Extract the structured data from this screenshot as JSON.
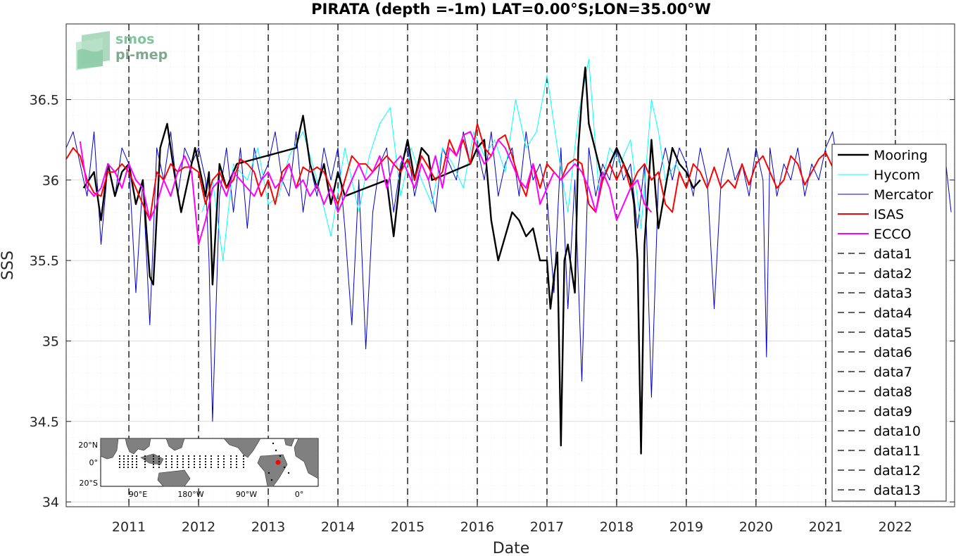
{
  "chart_data": {
    "type": "line",
    "title": "PIRATA (depth =-1m) LAT=0.00°S;LON=35.00°W",
    "xlabel": "Date",
    "ylabel": "SSS",
    "xlim": [
      2010.1,
      2022.85
    ],
    "ylim": [
      33.97,
      36.97
    ],
    "xticks": [
      "2011",
      "2012",
      "2013",
      "2014",
      "2015",
      "2016",
      "2017",
      "2018",
      "2019",
      "2020",
      "2021",
      "2022"
    ],
    "yticks": [
      "34",
      "34.5",
      "35",
      "35.5",
      "36",
      "36.5"
    ],
    "grid": true,
    "legend_position": "right",
    "logo": [
      "smos",
      "pi-mep"
    ],
    "series": [
      {
        "name": "Mooring",
        "color": "#000000",
        "x": [
          2010.35,
          2010.5,
          2010.6,
          2010.7,
          2010.8,
          2010.9,
          2011.0,
          2011.1,
          2011.2,
          2011.25,
          2011.3,
          2011.35,
          2011.45,
          2011.55,
          2011.65,
          2011.75,
          2011.85,
          2011.95,
          2012.1,
          2012.15,
          2012.2,
          2012.3,
          2012.4,
          2012.55,
          2013.4,
          2013.5,
          2013.6,
          2013.7,
          2013.8,
          2013.9,
          2014.0,
          2014.1,
          2014.7,
          2014.8,
          2014.9,
          2015.0,
          2015.1,
          2015.2,
          2015.3,
          2015.35,
          2015.9,
          2016.0,
          2016.1,
          2016.2,
          2016.3,
          2016.4,
          2016.5,
          2016.6,
          2016.7,
          2016.8,
          2016.9,
          2017.0,
          2017.05,
          2017.1,
          2017.15,
          2017.2,
          2017.25,
          2017.3,
          2017.35,
          2017.4,
          2017.45,
          2017.5,
          2017.55,
          2017.6,
          2017.8,
          2017.9,
          2018.0,
          2018.1,
          2018.2,
          2018.25,
          2018.3,
          2018.35,
          2018.4,
          2018.5,
          2018.6,
          2018.7,
          2018.8,
          2018.9,
          2019.0,
          2019.1,
          2019.2
        ],
        "y": [
          35.95,
          36.05,
          35.75,
          36.1,
          35.9,
          36.05,
          36.1,
          35.85,
          36.0,
          35.7,
          35.4,
          35.35,
          36.2,
          36.35,
          36.05,
          35.8,
          36.0,
          36.2,
          35.9,
          36.05,
          35.35,
          36.1,
          35.95,
          36.1,
          36.2,
          36.4,
          36.1,
          35.95,
          36.1,
          35.85,
          36.05,
          35.9,
          36.0,
          35.65,
          36.05,
          36.25,
          36.0,
          36.2,
          36.15,
          36.0,
          36.1,
          36.2,
          36.25,
          35.75,
          35.5,
          35.65,
          35.8,
          35.75,
          35.65,
          35.7,
          35.5,
          35.5,
          35.2,
          35.4,
          35.55,
          34.35,
          35.5,
          35.6,
          35.45,
          35.3,
          36.2,
          36.5,
          36.7,
          36.35,
          36.0,
          36.1,
          36.2,
          36.1,
          36.0,
          35.85,
          35.5,
          34.3,
          35.6,
          36.25,
          35.7,
          35.95,
          36.2,
          36.1,
          36.05,
          35.95,
          36.0
        ]
      },
      {
        "name": "Hycom",
        "color": "#00ffff",
        "x": [
          2012.05,
          2012.2,
          2012.35,
          2012.5,
          2012.7,
          2012.85,
          2013.0,
          2013.15,
          2013.3,
          2013.5,
          2013.7,
          2013.9,
          2014.1,
          2014.3,
          2014.45,
          2014.6,
          2014.75,
          2014.9,
          2015.05,
          2015.2,
          2015.35,
          2015.5,
          2015.65,
          2015.8,
          2015.95,
          2016.1,
          2016.25,
          2016.4,
          2016.55,
          2016.7,
          2016.85,
          2017.0,
          2017.15,
          2017.3,
          2017.45,
          2017.6,
          2017.75,
          2017.9,
          2018.05,
          2018.2,
          2018.35,
          2018.5,
          2018.6,
          2018.7,
          2018.85,
          2019.0
        ],
        "y": [
          35.8,
          36.0,
          35.5,
          36.1,
          36.0,
          36.2,
          35.85,
          35.9,
          36.15,
          36.3,
          36.0,
          35.65,
          36.2,
          35.8,
          36.15,
          36.35,
          36.45,
          35.9,
          36.2,
          36.0,
          35.85,
          36.2,
          36.1,
          35.95,
          36.3,
          36.15,
          36.25,
          36.05,
          36.5,
          36.2,
          36.3,
          36.65,
          36.2,
          35.8,
          36.4,
          36.75,
          35.9,
          36.2,
          36.1,
          36.25,
          35.7,
          36.5,
          36.3,
          36.0,
          36.1,
          35.95
        ]
      },
      {
        "name": "Mercator",
        "color": "#0000cc",
        "x": [
          2010.1,
          2010.2,
          2010.3,
          2010.4,
          2010.5,
          2010.6,
          2010.7,
          2010.8,
          2010.9,
          2011.0,
          2011.1,
          2011.2,
          2011.3,
          2011.4,
          2011.5,
          2011.6,
          2011.7,
          2011.8,
          2011.9,
          2012.0,
          2012.1,
          2012.15,
          2012.2,
          2012.3,
          2012.4,
          2012.5,
          2012.6,
          2012.7,
          2012.8,
          2012.9,
          2013.0,
          2013.1,
          2013.2,
          2013.3,
          2013.4,
          2013.5,
          2013.6,
          2013.7,
          2013.8,
          2013.9,
          2014.0,
          2014.1,
          2014.2,
          2014.3,
          2014.4,
          2014.5,
          2014.6,
          2014.7,
          2014.8,
          2014.9,
          2015.0,
          2015.1,
          2015.2,
          2015.3,
          2015.4,
          2015.5,
          2015.6,
          2015.7,
          2015.8,
          2015.9,
          2016.0,
          2016.1,
          2016.2,
          2016.3,
          2016.4,
          2016.5,
          2016.6,
          2016.7,
          2016.8,
          2016.9,
          2017.0,
          2017.1,
          2017.2,
          2017.3,
          2017.4,
          2017.5,
          2017.6,
          2017.7,
          2017.8,
          2017.9,
          2018.0,
          2018.1,
          2018.2,
          2018.3,
          2018.4,
          2018.5,
          2018.6,
          2018.7,
          2018.8,
          2018.9,
          2019.0,
          2019.1,
          2019.2,
          2019.3,
          2019.4,
          2019.5,
          2019.6,
          2019.7,
          2019.8,
          2019.9,
          2020.0,
          2020.1,
          2020.15,
          2020.2,
          2020.3,
          2020.4,
          2020.5,
          2020.6,
          2020.7,
          2020.8,
          2020.9,
          2021.0,
          2021.1,
          2021.2,
          2021.3,
          2021.4,
          2021.5,
          2021.6,
          2021.7,
          2021.8,
          2021.9,
          2022.0,
          2022.1,
          2022.2,
          2022.3,
          2022.4,
          2022.5,
          2022.6,
          2022.7,
          2022.8
        ],
        "y": [
          36.2,
          36.3,
          36.1,
          35.9,
          36.3,
          35.6,
          36.1,
          35.9,
          36.2,
          36.1,
          35.3,
          36.0,
          35.1,
          36.2,
          36.0,
          36.3,
          35.9,
          36.2,
          36.1,
          36.2,
          36.0,
          35.5,
          34.5,
          35.9,
          36.2,
          35.8,
          36.2,
          35.7,
          36.2,
          36.0,
          36.1,
          36.3,
          36.0,
          35.9,
          36.3,
          35.8,
          36.1,
          35.9,
          36.2,
          36.0,
          36.2,
          35.7,
          35.1,
          36.0,
          34.95,
          35.8,
          36.1,
          36.2,
          35.8,
          36.1,
          36.2,
          35.9,
          36.1,
          36.0,
          35.8,
          36.2,
          36.1,
          36.0,
          36.3,
          36.1,
          36.2,
          36.0,
          36.3,
          35.9,
          36.1,
          36.2,
          35.9,
          36.3,
          36.0,
          36.1,
          35.9,
          35.3,
          36.2,
          35.2,
          36.0,
          34.75,
          36.2,
          35.9,
          36.1,
          36.0,
          36.2,
          36.0,
          36.1,
          35.7,
          36.1,
          34.65,
          36.0,
          36.2,
          36.0,
          36.2,
          36.1,
          35.9,
          36.2,
          36.0,
          35.2,
          36.0,
          36.2,
          36.0,
          36.1,
          35.9,
          36.2,
          36.0,
          34.9,
          36.2,
          35.9,
          36.1,
          36.0,
          36.2,
          35.9,
          36.1,
          36.0,
          36.2,
          36.3,
          36.0,
          35.9,
          36.2,
          36.1,
          36.0,
          36.2,
          35.9,
          36.1,
          36.2,
          36.0,
          36.2,
          36.1,
          35.9,
          36.2,
          36.0,
          36.2,
          35.8
        ]
      },
      {
        "name": "ISAS",
        "color": "#ff0000",
        "x": [
          2010.1,
          2010.2,
          2010.3,
          2010.4,
          2010.5,
          2010.6,
          2010.7,
          2010.8,
          2010.9,
          2011.0,
          2011.1,
          2011.2,
          2011.3,
          2011.4,
          2011.5,
          2011.6,
          2011.7,
          2011.8,
          2011.9,
          2012.0,
          2012.1,
          2012.2,
          2012.3,
          2012.4,
          2012.5,
          2012.6,
          2012.7,
          2012.8,
          2012.9,
          2013.0,
          2013.1,
          2013.2,
          2013.3,
          2013.4,
          2013.5,
          2013.6,
          2013.7,
          2013.8,
          2013.9,
          2014.0,
          2014.1,
          2014.2,
          2014.3,
          2014.4,
          2014.5,
          2014.6,
          2014.7,
          2014.8,
          2014.9,
          2015.0,
          2015.1,
          2015.2,
          2015.3,
          2015.4,
          2015.5,
          2015.6,
          2015.7,
          2015.8,
          2015.9,
          2016.0,
          2016.1,
          2016.2,
          2016.3,
          2016.4,
          2016.5,
          2016.6,
          2016.7,
          2016.8,
          2016.9,
          2017.0,
          2017.1,
          2017.2,
          2017.3,
          2017.4,
          2017.5,
          2017.6,
          2017.7,
          2017.8,
          2017.9,
          2018.0,
          2018.1,
          2018.2,
          2018.3,
          2018.4,
          2018.5,
          2018.6,
          2018.7,
          2018.8,
          2018.9,
          2019.0,
          2019.1,
          2019.2,
          2019.3,
          2019.4,
          2019.5,
          2019.6,
          2019.7,
          2019.8,
          2019.9,
          2020.0,
          2020.1,
          2020.2,
          2020.3,
          2020.4,
          2020.5,
          2020.6,
          2020.7,
          2020.8,
          2020.9,
          2021.0,
          2021.1
        ],
        "y": [
          36.13,
          36.2,
          36.15,
          36.0,
          35.92,
          35.9,
          36.05,
          36.05,
          36.1,
          36.05,
          35.95,
          35.85,
          35.75,
          36.05,
          36.0,
          36.1,
          36.05,
          36.08,
          36.08,
          36.05,
          35.85,
          36.0,
          36.05,
          35.95,
          36.0,
          36.13,
          36.1,
          36.05,
          35.9,
          36.0,
          35.85,
          36.05,
          36.1,
          35.95,
          36.08,
          36.05,
          36.08,
          36.05,
          35.95,
          35.85,
          36.0,
          36.15,
          36.1,
          36.1,
          36.05,
          36.1,
          36.15,
          36.1,
          36.05,
          36.13,
          36.0,
          36.15,
          36.08,
          36.0,
          36.05,
          36.25,
          36.15,
          36.25,
          36.1,
          36.35,
          36.2,
          36.15,
          36.25,
          36.28,
          36.15,
          36.0,
          35.9,
          36.1,
          35.95,
          36.1,
          36.05,
          36.0,
          36.1,
          36.13,
          36.1,
          35.85,
          35.8,
          36.0,
          36.1,
          36.0,
          36.1,
          35.95,
          36.05,
          36.1,
          36.0,
          36.05,
          35.85,
          35.8,
          36.05,
          35.95,
          36.1,
          36.05,
          35.95,
          36.08,
          35.95,
          36.0,
          35.95,
          36.1,
          35.97,
          36.1,
          36.15,
          36.05,
          35.95,
          36.0,
          36.15,
          36.1,
          35.97,
          36.05,
          36.13,
          36.17,
          36.08
        ]
      },
      {
        "name": "ECCO",
        "color": "#ff00ff",
        "x": [
          2010.3,
          2010.4,
          2010.5,
          2010.6,
          2010.7,
          2010.8,
          2010.9,
          2011.0,
          2011.1,
          2011.2,
          2011.3,
          2011.4,
          2011.5,
          2011.6,
          2011.7,
          2011.8,
          2011.9,
          2012.0,
          2012.1,
          2012.2,
          2012.3,
          2012.4,
          2012.5,
          2012.6,
          2012.7,
          2012.8,
          2012.9,
          2013.0,
          2013.1,
          2013.2,
          2013.3,
          2013.4,
          2013.5,
          2013.6,
          2013.7,
          2013.8,
          2013.9,
          2014.0,
          2014.1,
          2014.2,
          2014.3,
          2014.4,
          2014.5,
          2014.6,
          2014.7,
          2014.8,
          2014.9,
          2015.0,
          2015.1,
          2015.2,
          2015.3,
          2015.4,
          2015.5,
          2015.6,
          2015.7,
          2015.8,
          2015.9,
          2016.0,
          2016.1,
          2016.2,
          2016.3,
          2016.4,
          2016.5,
          2016.6,
          2016.7,
          2016.8,
          2016.9,
          2017.0,
          2017.1,
          2017.2,
          2017.3,
          2017.4,
          2017.5,
          2017.6,
          2017.7,
          2017.8,
          2017.9,
          2018.0,
          2018.1,
          2018.2,
          2018.3,
          2018.4,
          2018.5
        ],
        "y": [
          36.24,
          35.95,
          35.9,
          35.95,
          36.1,
          36.05,
          35.95,
          36.1,
          36.0,
          35.95,
          35.75,
          35.85,
          36.0,
          35.9,
          36.05,
          36.15,
          36.05,
          35.6,
          35.75,
          35.95,
          36.0,
          35.9,
          36.05,
          36.0,
          35.95,
          35.9,
          36.0,
          36.05,
          35.95,
          36.0,
          36.1,
          35.95,
          36.0,
          35.9,
          35.97,
          35.85,
          35.95,
          35.8,
          35.9,
          36.0,
          36.1,
          36.0,
          36.05,
          36.15,
          35.95,
          36.1,
          36.15,
          36.05,
          35.95,
          36.1,
          36.0,
          36.15,
          35.95,
          36.2,
          36.15,
          36.28,
          36.3,
          36.2,
          36.1,
          36.15,
          36.25,
          36.2,
          36.1,
          36.0,
          35.95,
          36.1,
          35.85,
          35.95,
          36.05,
          36.0,
          36.05,
          36.1,
          36.05,
          35.95,
          35.8,
          36.05,
          35.95,
          35.75,
          35.85,
          35.95,
          36.0,
          35.85,
          35.8
        ]
      }
    ],
    "vlines": [
      {
        "name": "data1",
        "x": 2011.0
      },
      {
        "name": "data2",
        "x": 2012.0
      },
      {
        "name": "data3",
        "x": 2013.0
      },
      {
        "name": "data4",
        "x": 2014.0
      },
      {
        "name": "data5",
        "x": 2015.0
      },
      {
        "name": "data6",
        "x": 2016.0
      },
      {
        "name": "data7",
        "x": 2017.0
      },
      {
        "name": "data8",
        "x": 2018.0
      },
      {
        "name": "data9",
        "x": 2019.0
      },
      {
        "name": "data10",
        "x": 2020.0
      },
      {
        "name": "data11",
        "x": 2021.0
      },
      {
        "name": "data12",
        "x": 2022.0
      },
      {
        "name": "data13",
        "x": 2022.85
      }
    ],
    "inset_map": {
      "y_tick_labels": [
        "20°N",
        "0°",
        "20°S"
      ],
      "x_tick_labels": [
        "90°E",
        "180°W",
        "90°W",
        "0°"
      ],
      "marker_color": "#ff0000"
    }
  }
}
